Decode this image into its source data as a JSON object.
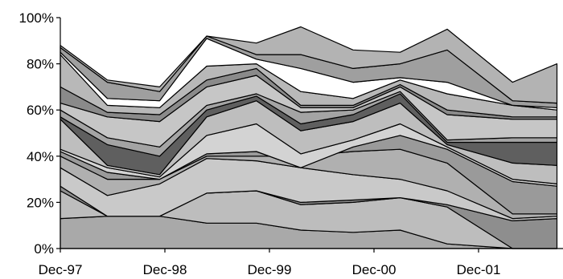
{
  "chart_data": {
    "type": "area",
    "stacked": true,
    "percent": true,
    "title": "",
    "xlabel": "",
    "ylabel": "",
    "ylim": [
      0,
      100
    ],
    "y_ticks": [
      0,
      20,
      40,
      60,
      80,
      100
    ],
    "y_tick_labels": [
      "0%",
      "20%",
      "40%",
      "60%",
      "80%",
      "100%"
    ],
    "x_tick_labels": [
      "Dec-97",
      "Dec-98",
      "Dec-99",
      "Dec-00",
      "Dec-01"
    ],
    "x_tick_positions": [
      0,
      4,
      8,
      12,
      16
    ],
    "grid": false,
    "legend": "none",
    "x": [
      0,
      1.8,
      3.8,
      5.6,
      7.5,
      9.2,
      11.2,
      13,
      14.8,
      17.3,
      19
    ],
    "boundaries": [
      [
        13,
        14,
        14,
        11,
        11,
        8,
        7,
        8,
        2,
        0,
        0
      ],
      [
        25,
        14,
        14,
        24,
        25,
        19,
        20,
        22,
        18,
        0,
        0
      ],
      [
        27,
        14,
        14,
        24,
        25,
        20,
        21,
        22,
        19,
        12,
        13
      ],
      [
        35,
        23,
        28,
        39,
        38,
        35,
        32,
        30,
        25,
        13,
        14
      ],
      [
        40,
        30,
        30,
        40,
        40,
        40,
        42,
        43,
        37,
        15,
        15
      ],
      [
        42,
        33,
        30,
        41,
        42,
        35,
        44,
        49,
        43,
        29,
        27
      ],
      [
        43,
        35,
        31,
        49,
        54,
        41,
        47,
        54,
        44,
        30,
        28
      ],
      [
        56,
        36,
        32,
        57,
        64,
        51,
        55,
        63,
        45,
        37,
        36
      ],
      [
        57,
        45,
        40,
        60,
        66,
        54,
        58,
        67,
        46,
        46,
        46
      ],
      [
        60,
        48,
        44,
        62,
        67,
        59,
        60,
        68,
        47,
        48,
        48
      ],
      [
        63,
        57,
        55,
        70,
        75,
        61,
        61,
        70,
        58,
        56,
        56
      ],
      [
        70,
        59,
        58,
        73,
        78,
        62,
        62,
        71,
        60,
        57,
        57
      ],
      [
        84,
        62,
        61,
        79,
        80,
        68,
        65,
        73,
        67,
        62,
        60
      ],
      [
        85,
        65,
        64,
        91,
        82,
        78,
        72,
        74,
        72,
        62,
        61
      ],
      [
        87,
        72,
        68,
        92,
        84,
        84,
        78,
        80,
        86,
        64,
        63
      ],
      [
        88,
        73,
        70,
        92,
        89,
        96,
        86,
        85,
        95,
        72,
        80
      ]
    ],
    "fills": [
      "#a9a9a9",
      "#bdbdbd",
      "#8e8e8e",
      "#c9c9c9",
      "#b0b0b0",
      "#9a9a9a",
      "#d3d3d3",
      "#bebebe",
      "#5f5f5f",
      "#a4a4a4",
      "#c6c6c6",
      "#8a8a8a",
      "#b8b8b8",
      "#ffffff",
      "#9f9f9f",
      "#b3b3b3"
    ]
  }
}
